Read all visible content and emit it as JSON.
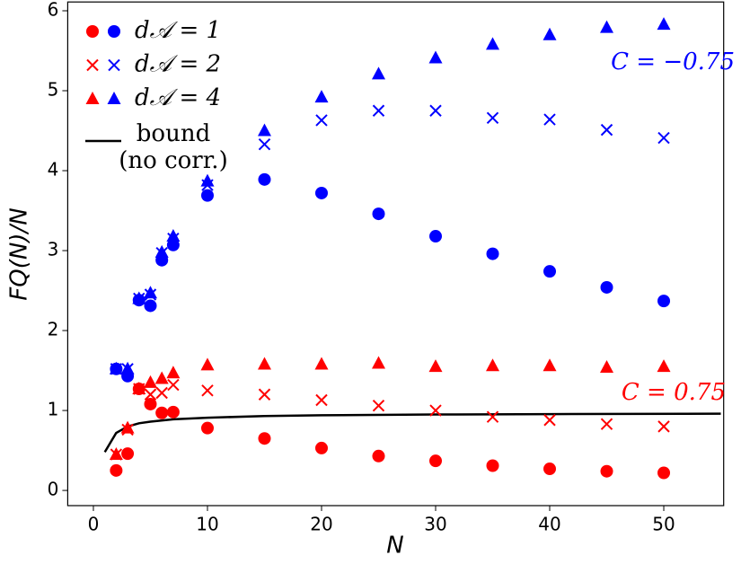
{
  "chart_data": {
    "type": "scatter",
    "x_label": "N",
    "y_label": "FQ(N)/N",
    "x": [
      2,
      3,
      4,
      5,
      6,
      7,
      10,
      15,
      20,
      25,
      30,
      35,
      40,
      45,
      50
    ],
    "series": [
      {
        "name": "d𝒜 = 1",
        "marker": "circle",
        "groups": [
          {
            "color": "#ff0000",
            "values": [
              0.25,
              0.46,
              1.27,
              1.08,
              0.97,
              0.98,
              0.78,
              0.65,
              0.53,
              0.43,
              0.37,
              0.31,
              0.27,
              0.24,
              0.22
            ]
          },
          {
            "color": "#0000ff",
            "values": [
              1.52,
              1.43,
              2.38,
              2.31,
              2.88,
              3.07,
              3.69,
              3.89,
              3.72,
              3.46,
              3.18,
              2.96,
              2.74,
              2.54,
              2.37
            ]
          }
        ]
      },
      {
        "name": "d𝒜 = 2",
        "marker": "x",
        "groups": [
          {
            "color": "#ff0000",
            "values": [
              0.45,
              0.76,
              1.27,
              1.2,
              1.22,
              1.32,
              1.25,
              1.2,
              1.13,
              1.06,
              1.0,
              0.92,
              0.88,
              0.83,
              0.8
            ]
          },
          {
            "color": "#0000ff",
            "values": [
              1.52,
              1.52,
              2.4,
              2.45,
              2.97,
              3.15,
              3.82,
              4.33,
              4.63,
              4.75,
              4.75,
              4.66,
              4.64,
              4.51,
              4.41
            ]
          }
        ]
      },
      {
        "name": "d𝒜 = 4",
        "marker": "triangle",
        "groups": [
          {
            "color": "#ff0000",
            "values": [
              0.45,
              0.78,
              1.27,
              1.35,
              1.4,
              1.47,
              1.57,
              1.58,
              1.58,
              1.59,
              1.55,
              1.56,
              1.56,
              1.54,
              1.55
            ]
          },
          {
            "color": "#0000ff",
            "values": [
              1.52,
              1.52,
              2.4,
              2.47,
              2.98,
              3.18,
              3.87,
              4.5,
              4.92,
              5.21,
              5.41,
              5.58,
              5.7,
              5.79,
              5.83
            ]
          }
        ]
      }
    ],
    "line": {
      "name": [
        "bound",
        "(no corr.)"
      ],
      "color": "#000000",
      "x": [
        1,
        2,
        3,
        4,
        5,
        7,
        10,
        15,
        20,
        30,
        40,
        55
      ],
      "values": [
        0.48,
        0.72,
        0.8,
        0.84,
        0.86,
        0.89,
        0.91,
        0.93,
        0.94,
        0.95,
        0.955,
        0.96
      ]
    },
    "annotations": [
      {
        "text": "C = −0.75",
        "color": "#0000ff"
      },
      {
        "text": "C = 0.75",
        "color": "#ff0000"
      }
    ],
    "xlim": [
      -2.25,
      55.25
    ],
    "ylim": [
      -0.19,
      6.11
    ],
    "xticks": [
      0,
      10,
      20,
      30,
      40,
      50
    ],
    "yticks": [
      0,
      1,
      2,
      3,
      4,
      5,
      6
    ],
    "legend": "upper left"
  }
}
